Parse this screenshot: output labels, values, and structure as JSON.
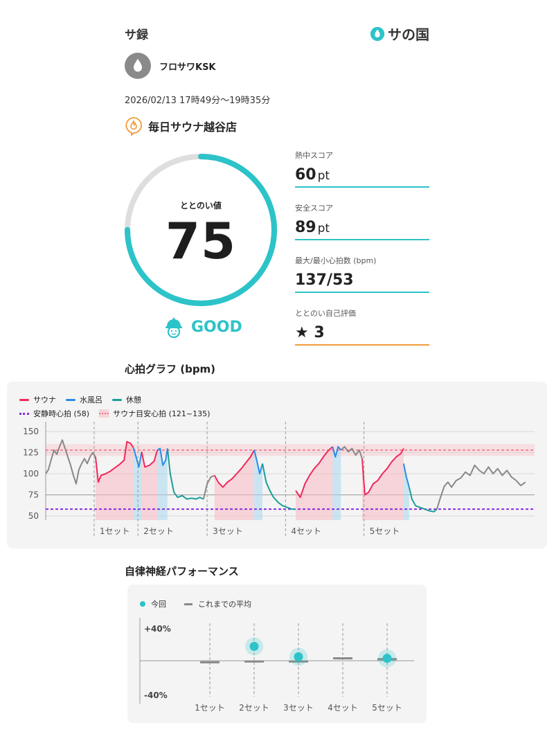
{
  "header": {
    "title": "サ録",
    "brand": "サの国"
  },
  "user": {
    "name": "フロサワKSK"
  },
  "session": {
    "datetime": "2026/02/13 17時49分〜19時35分",
    "facility": "毎日サウナ越谷店"
  },
  "totonoi": {
    "label": "ととのい値",
    "value": "75",
    "fraction": 0.75,
    "status": "GOOD"
  },
  "stats": [
    {
      "label": "熱中スコア",
      "value": "60",
      "unit": "pt"
    },
    {
      "label": "安全スコア",
      "value": "89",
      "unit": "pt"
    },
    {
      "label": "最大/最小心拍数 (bpm)",
      "value": "137/53",
      "unit": ""
    },
    {
      "label": "ととのい自己評価",
      "value": "★ 3",
      "unit": ""
    }
  ],
  "heart_section": {
    "title": "心拍グラフ (bpm)"
  },
  "legend": {
    "sauna": "サウナ",
    "water": "水風呂",
    "rest": "休憩",
    "resting_hr": "安静時心拍 (58)",
    "sauna_target": "サウナ目安心拍 (121~135)"
  },
  "colors": {
    "accent": "#2cc3c9",
    "sauna": "#f0285a",
    "water": "#2a8ae6",
    "rest": "#1a9e96",
    "other": "#888888",
    "resting": "#8a2be2",
    "target": "#f06a80",
    "orange": "#f29a38"
  },
  "ans_section": {
    "title": "自律神経パフォーマンス"
  },
  "ans_legend": {
    "current": "今回",
    "average": "これまでの平均"
  },
  "chart_data": [
    {
      "type": "line",
      "title": "心拍グラフ (bpm)",
      "yticks": [
        "150",
        "125",
        "100",
        "75",
        "50"
      ],
      "ylim": [
        45,
        155
      ],
      "xlim": [
        0,
        106
      ],
      "set_labels": [
        "1セット",
        "2セット",
        "3セット",
        "4セット",
        "5セット"
      ],
      "set_starts": [
        10.5,
        20,
        35,
        52,
        69
      ],
      "resting_hr": 58,
      "sauna_target": [
        121,
        135
      ],
      "segments": [
        {
          "kind": "other",
          "points": [
            [
              0,
              100
            ],
            [
              0.6,
              105
            ],
            [
              1.2,
              117
            ],
            [
              1.8,
              128
            ],
            [
              2.4,
              123
            ],
            [
              3,
              132
            ],
            [
              3.6,
              140
            ],
            [
              4.2,
              130
            ],
            [
              4.8,
              120
            ],
            [
              5.4,
              110
            ],
            [
              6,
              98
            ],
            [
              6.6,
              88
            ],
            [
              7.2,
              105
            ],
            [
              7.8,
              112
            ],
            [
              8.4,
              118
            ],
            [
              9,
              112
            ],
            [
              9.6,
              120
            ],
            [
              10.2,
              125
            ],
            [
              10.8,
              120
            ]
          ]
        },
        {
          "kind": "sauna",
          "points": [
            [
              10.8,
              120
            ],
            [
              11.4,
              90
            ],
            [
              12,
              98
            ],
            [
              13,
              100
            ],
            [
              14,
              103
            ],
            [
              15,
              107
            ],
            [
              16,
              111
            ],
            [
              17,
              116
            ],
            [
              17.6,
              138
            ],
            [
              18.4,
              136
            ],
            [
              19,
              131
            ]
          ]
        },
        {
          "kind": "water",
          "points": [
            [
              19,
              131
            ],
            [
              19.6,
              120
            ],
            [
              20.2,
              108
            ],
            [
              20.8,
              126
            ]
          ]
        },
        {
          "kind": "sauna",
          "points": [
            [
              20.8,
              126
            ],
            [
              21.5,
              108
            ],
            [
              22.5,
              110
            ],
            [
              23.5,
              115
            ],
            [
              24.2,
              128
            ]
          ]
        },
        {
          "kind": "water",
          "points": [
            [
              24.2,
              128
            ],
            [
              24.8,
              130
            ],
            [
              25.4,
              110
            ],
            [
              26,
              116
            ],
            [
              26.4,
              130
            ]
          ]
        },
        {
          "kind": "rest",
          "points": [
            [
              26.4,
              130
            ],
            [
              27,
              100
            ],
            [
              27.8,
              78
            ],
            [
              28.6,
              72
            ],
            [
              29.6,
              74
            ],
            [
              30.6,
              70
            ],
            [
              31.6,
              71
            ],
            [
              32.6,
              70
            ],
            [
              33.4,
              72
            ],
            [
              34.2,
              70
            ]
          ]
        },
        {
          "kind": "other",
          "points": [
            [
              34.2,
              70
            ],
            [
              35,
              88
            ],
            [
              35.8,
              96
            ],
            [
              36.6,
              98
            ]
          ]
        },
        {
          "kind": "sauna",
          "points": [
            [
              36.6,
              98
            ],
            [
              37.4,
              90
            ],
            [
              38.4,
              84
            ],
            [
              39.4,
              90
            ],
            [
              40.4,
              94
            ],
            [
              41.4,
              100
            ],
            [
              42.4,
              106
            ],
            [
              43.4,
              113
            ],
            [
              44.4,
              120
            ],
            [
              45.2,
              128
            ]
          ]
        },
        {
          "kind": "water",
          "points": [
            [
              45.2,
              128
            ],
            [
              45.8,
              115
            ],
            [
              46.4,
              100
            ],
            [
              47,
              112
            ]
          ]
        },
        {
          "kind": "rest",
          "points": [
            [
              47,
              112
            ],
            [
              47.8,
              90
            ],
            [
              48.6,
              80
            ],
            [
              49.4,
              72
            ],
            [
              50.4,
              66
            ],
            [
              51.4,
              62
            ],
            [
              52.4,
              60
            ],
            [
              53.4,
              58
            ],
            [
              54.2,
              58
            ]
          ]
        },
        {
          "kind": "other",
          "points": [
            [
              54.2,
              58
            ]
          ]
        },
        {
          "kind": "sauna",
          "points": [
            [
              54.2,
              80
            ],
            [
              55.2,
              72
            ],
            [
              56.2,
              88
            ],
            [
              57.2,
              98
            ],
            [
              58.2,
              106
            ],
            [
              59.2,
              112
            ],
            [
              60.2,
              120
            ],
            [
              61.2,
              127
            ],
            [
              62.2,
              132
            ]
          ]
        },
        {
          "kind": "water",
          "points": [
            [
              62.2,
              132
            ],
            [
              62.8,
              120
            ],
            [
              63.4,
              132
            ],
            [
              64,
              128
            ]
          ]
        },
        {
          "kind": "other",
          "points": [
            [
              64,
              128
            ],
            [
              64.8,
              132
            ],
            [
              65.6,
              126
            ],
            [
              66.4,
              130
            ],
            [
              67.2,
              122
            ],
            [
              68,
              128
            ],
            [
              68.6,
              118
            ]
          ]
        },
        {
          "kind": "sauna",
          "points": [
            [
              68.6,
              118
            ],
            [
              69.2,
              75
            ],
            [
              70,
              78
            ],
            [
              71,
              88
            ],
            [
              72,
              92
            ],
            [
              73,
              100
            ],
            [
              74,
              106
            ],
            [
              75,
              114
            ],
            [
              76,
              120
            ],
            [
              77,
              124
            ],
            [
              77.6,
              130
            ]
          ]
        },
        {
          "kind": "water",
          "points": [
            [
              77.6,
              112
            ],
            [
              78.2,
              96
            ],
            [
              78.8,
              84
            ]
          ]
        },
        {
          "kind": "rest",
          "points": [
            [
              78.8,
              84
            ],
            [
              79.4,
              70
            ],
            [
              80.2,
              62
            ],
            [
              81.2,
              60
            ],
            [
              82.2,
              58
            ],
            [
              83.2,
              56
            ],
            [
              84.2,
              55
            ],
            [
              84.8,
              58
            ]
          ]
        },
        {
          "kind": "other",
          "points": [
            [
              84.8,
              58
            ],
            [
              85.6,
              72
            ],
            [
              86.4,
              85
            ],
            [
              87.2,
              90
            ],
            [
              88,
              84
            ],
            [
              89,
              92
            ],
            [
              90,
              95
            ],
            [
              91,
              102
            ],
            [
              92,
              98
            ],
            [
              93,
              110
            ],
            [
              94,
              104
            ],
            [
              95,
              100
            ],
            [
              96,
              108
            ],
            [
              97,
              100
            ],
            [
              98,
              106
            ],
            [
              99,
              98
            ],
            [
              100,
              104
            ],
            [
              101,
              96
            ],
            [
              102,
              92
            ],
            [
              103,
              86
            ],
            [
              104,
              90
            ]
          ]
        }
      ]
    },
    {
      "type": "scatter",
      "title": "自律神経パフォーマンス",
      "categories": [
        "1セット",
        "2セット",
        "3セット",
        "4セット",
        "5セット"
      ],
      "yticks": [
        "+40%",
        "-40%"
      ],
      "ylim": [
        -40,
        40
      ],
      "series": [
        {
          "name": "今回",
          "values": [
            null,
            18,
            5,
            null,
            3
          ]
        },
        {
          "name": "これまでの平均",
          "values": [
            -2,
            -1,
            -1,
            3,
            2
          ]
        }
      ]
    }
  ]
}
